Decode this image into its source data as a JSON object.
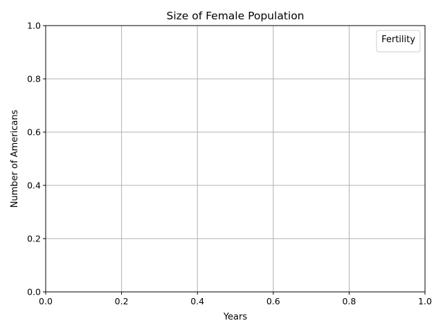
{
  "chart_data": {
    "type": "line",
    "title": "Size of Female Population",
    "xlabel": "Years",
    "ylabel": "Number of Americans",
    "xlim": [
      0.0,
      1.0
    ],
    "ylim": [
      0.0,
      1.0
    ],
    "x_ticks": [
      "0.0",
      "0.2",
      "0.4",
      "0.6",
      "0.8",
      "1.0"
    ],
    "y_ticks": [
      "0.0",
      "0.2",
      "0.4",
      "0.6",
      "0.8",
      "1.0"
    ],
    "grid": true,
    "legend": {
      "title": "Fertility",
      "placement": "top-right",
      "entries": []
    },
    "series": []
  }
}
